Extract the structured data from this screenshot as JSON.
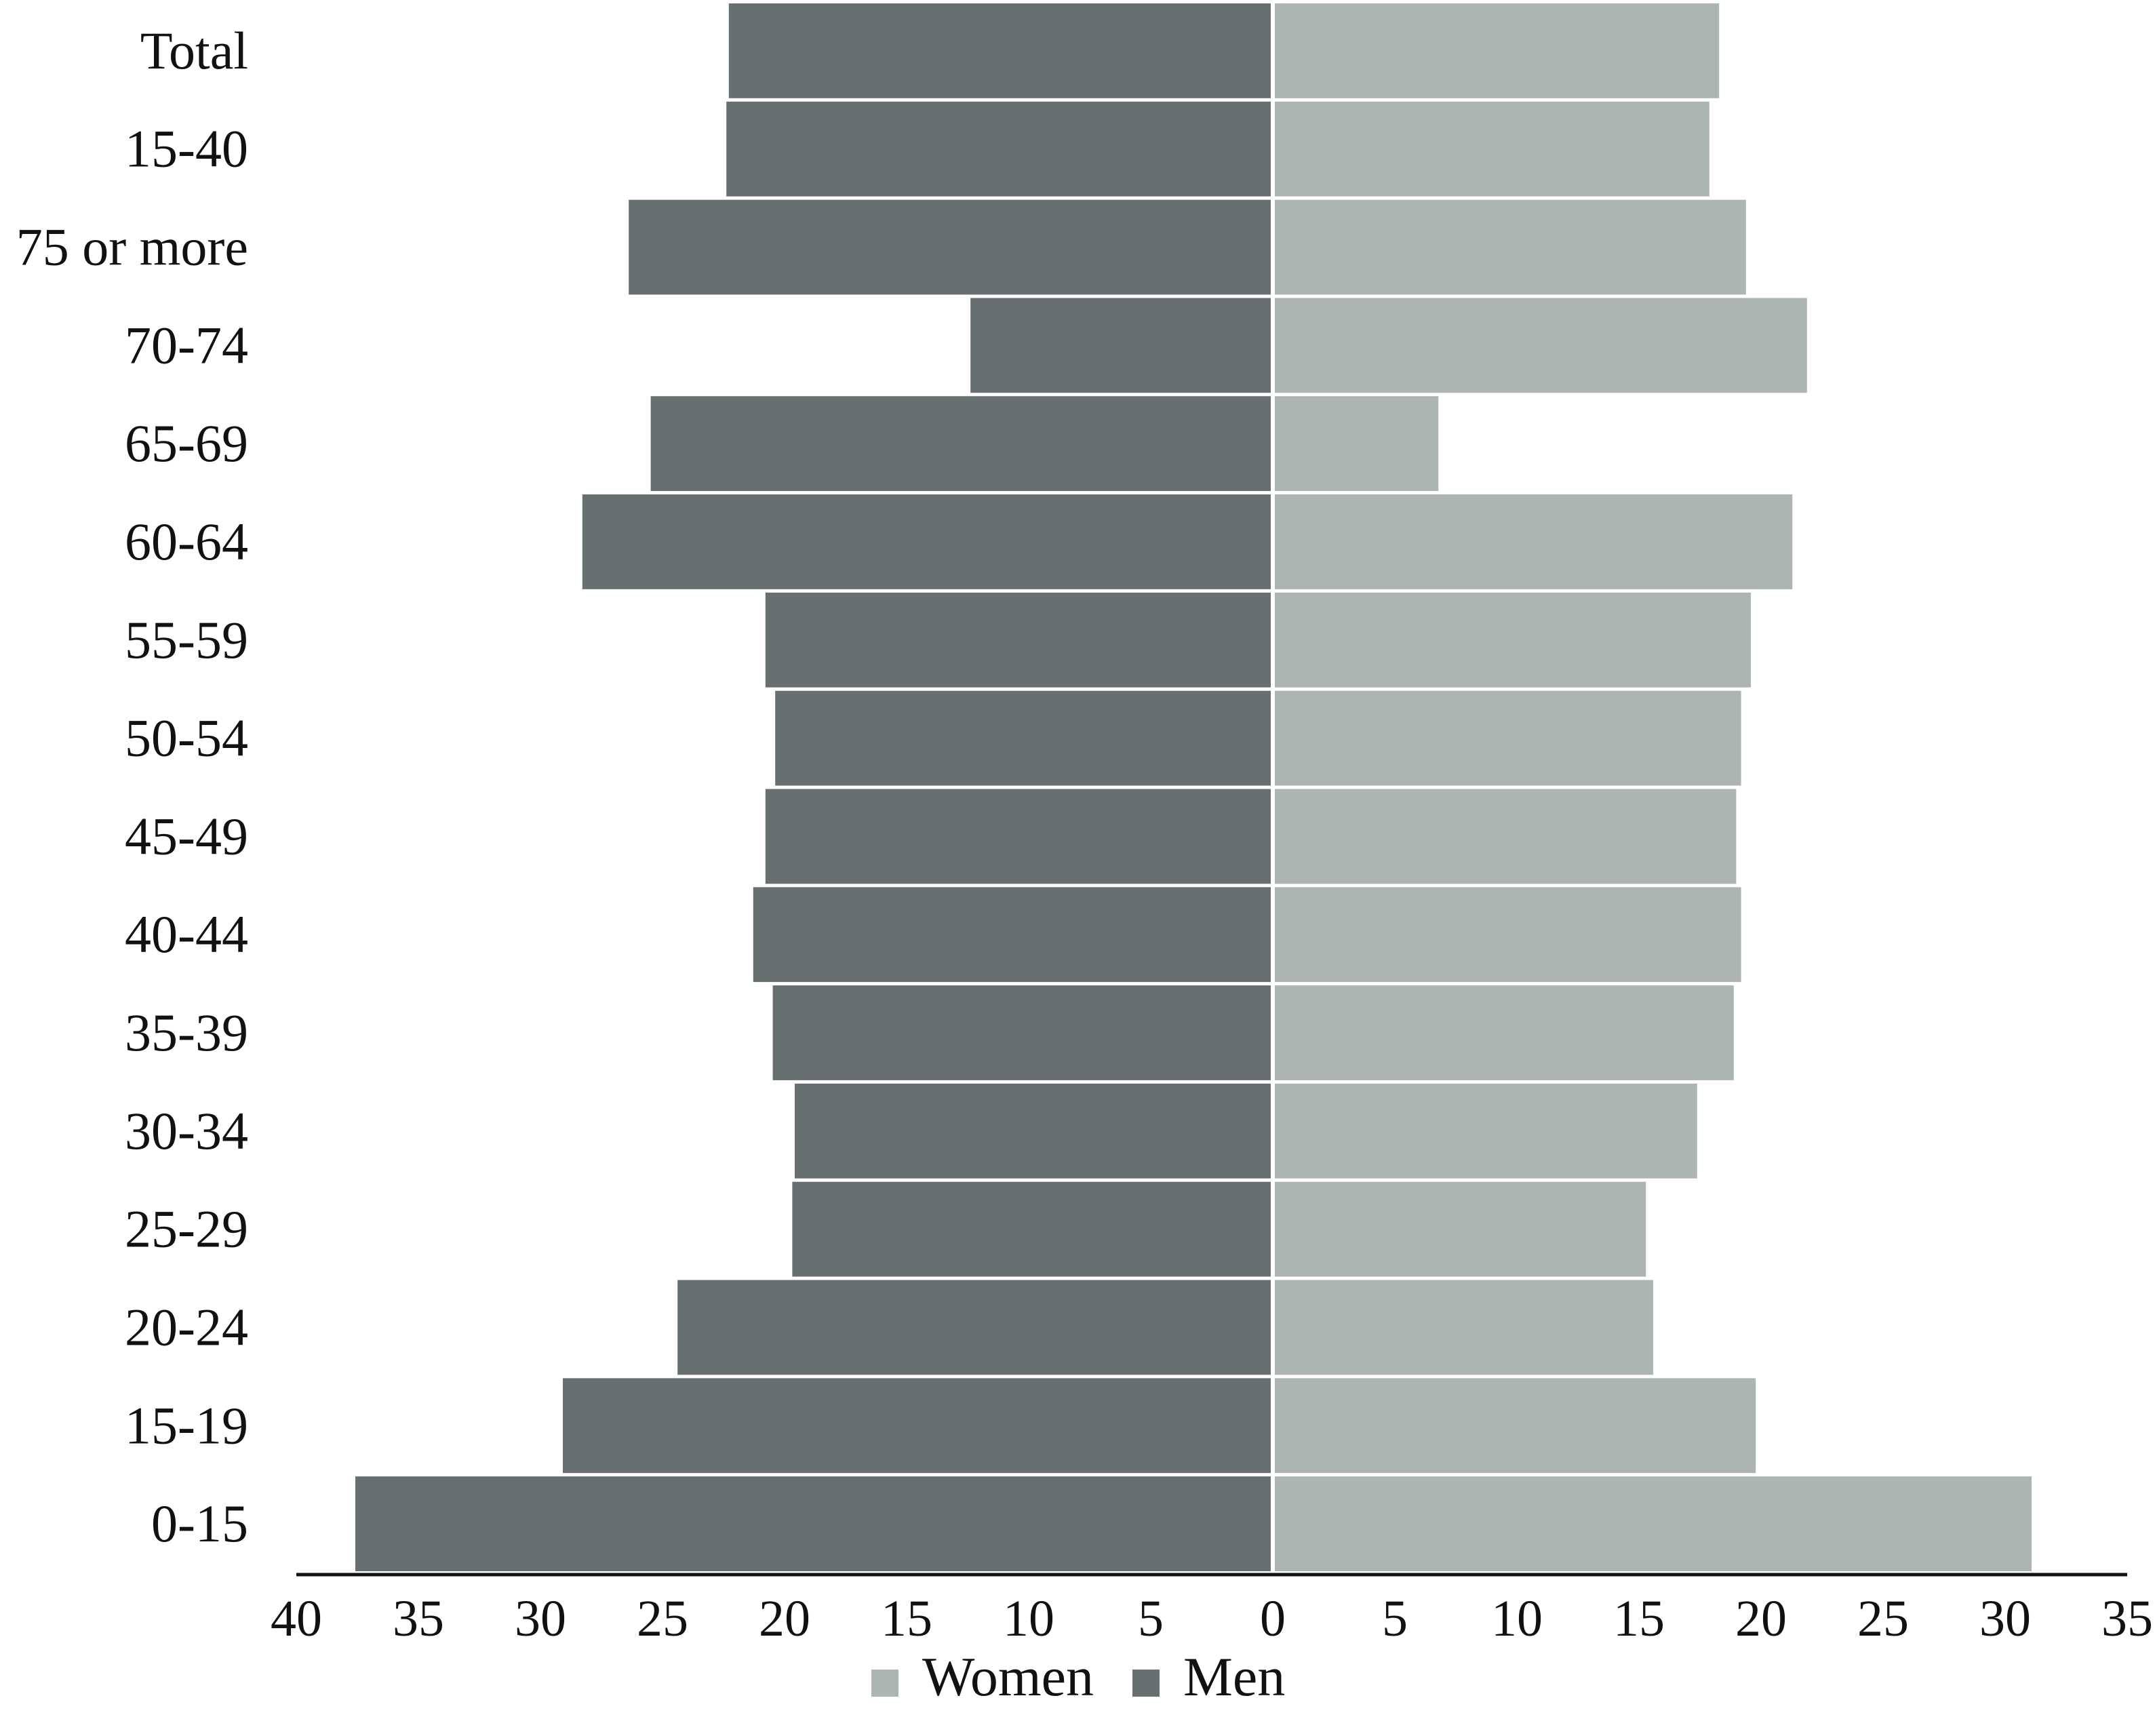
{
  "chart_data": {
    "type": "bar",
    "orientation": "horizontal",
    "layout": "population-pyramid",
    "categories": [
      "Total",
      "15-40",
      "75 or more",
      "70-74",
      "65-69",
      "60-64",
      "55-59",
      "50-54",
      "45-49",
      "40-44",
      "35-39",
      "30-34",
      "25-29",
      "20-24",
      "15-19",
      "0-15"
    ],
    "series": [
      {
        "name": "Women",
        "side": "right",
        "color": "#adb4b4",
        "values": [
          18.2,
          17.8,
          19.3,
          21.8,
          6.7,
          21.2,
          19.5,
          19.1,
          18.9,
          19.1,
          18.8,
          17.3,
          15.2,
          15.5,
          19.7,
          31.0
        ]
      },
      {
        "name": "Men",
        "side": "left",
        "color": "#686f71",
        "values": [
          22.2,
          22.3,
          26.3,
          12.3,
          25.4,
          28.2,
          20.7,
          20.3,
          20.7,
          21.2,
          20.4,
          19.5,
          19.6,
          24.3,
          29.0,
          37.5
        ]
      }
    ],
    "x_ticks_left": [
      "40",
      "35",
      "30",
      "25",
      "20",
      "15",
      "10",
      "5"
    ],
    "x_ticks_right": [
      "0",
      "5",
      "10",
      "15",
      "20",
      "25",
      "30",
      "35"
    ],
    "xlim_left": [
      0,
      40
    ],
    "xlim_right": [
      0,
      35
    ],
    "xlabel": "",
    "ylabel": "",
    "title": "",
    "grid": false,
    "legend": {
      "position": "bottom-center",
      "entries": [
        {
          "label": "Women",
          "color": "#adb4b4"
        },
        {
          "label": "Men",
          "color": "#686f71"
        }
      ]
    }
  }
}
